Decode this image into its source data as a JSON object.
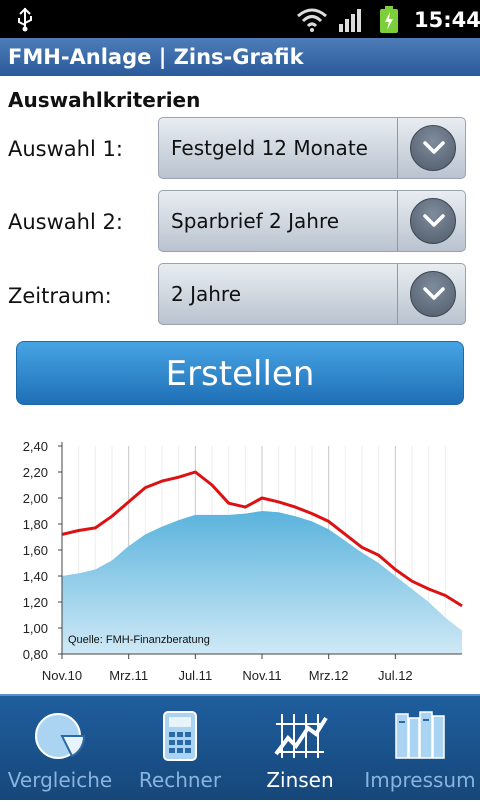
{
  "status_bar": {
    "time": "15:44"
  },
  "app": {
    "title": "FMH-Anlage | Zins-Grafik"
  },
  "form": {
    "section_title": "Auswahlkriterien",
    "rows": [
      {
        "label": "Auswahl 1:",
        "value": "Festgeld 12 Monate"
      },
      {
        "label": "Auswahl 2:",
        "value": "Sparbrief 2 Jahre"
      },
      {
        "label": "Zeitraum:",
        "value": "2 Jahre"
      }
    ],
    "button_label": "Erstellen"
  },
  "tabs": [
    {
      "label": "Vergleiche",
      "icon": "pie-chart-icon",
      "active": false
    },
    {
      "label": "Rechner",
      "icon": "calculator-icon",
      "active": false
    },
    {
      "label": "Zinsen",
      "icon": "line-chart-icon",
      "active": true
    },
    {
      "label": "Impressum",
      "icon": "books-icon",
      "active": false
    }
  ],
  "colors": {
    "line": "#dd1111",
    "area": "#5ab3dd",
    "title_bar": "#2a5a9a",
    "button": "#2a86cc"
  },
  "chart_data": {
    "type": "line",
    "annotation": "Quelle: FMH-Finanzberatung",
    "ylim": [
      0.8,
      2.4
    ],
    "y_ticks": [
      "2,40",
      "2,20",
      "2,00",
      "1,80",
      "1,60",
      "1,40",
      "1,20",
      "1,00",
      "0,80"
    ],
    "x_ticks": [
      "Nov.10",
      "Mrz.11",
      "Jul.11",
      "Nov.11",
      "Mrz.12",
      "Jul.12"
    ],
    "xlim": [
      0,
      24
    ],
    "grid": "vertical",
    "series": [
      {
        "style": "area",
        "x": [
          0,
          1,
          2,
          3,
          4,
          5,
          6,
          7,
          8,
          9,
          10,
          11,
          12,
          13,
          14,
          15,
          16,
          17,
          18,
          19,
          20,
          21,
          22,
          23,
          24
        ],
        "values": [
          1.4,
          1.42,
          1.45,
          1.52,
          1.63,
          1.72,
          1.78,
          1.83,
          1.87,
          1.87,
          1.87,
          1.88,
          1.9,
          1.89,
          1.86,
          1.82,
          1.76,
          1.67,
          1.58,
          1.5,
          1.4,
          1.3,
          1.2,
          1.08,
          0.98
        ]
      },
      {
        "style": "line",
        "x": [
          0,
          1,
          2,
          3,
          4,
          5,
          6,
          7,
          8,
          9,
          10,
          11,
          12,
          13,
          14,
          15,
          16,
          17,
          18,
          19,
          20,
          21,
          22,
          23,
          24
        ],
        "values": [
          1.72,
          1.75,
          1.77,
          1.86,
          1.97,
          2.08,
          2.13,
          2.16,
          2.2,
          2.1,
          1.96,
          1.93,
          2.0,
          1.97,
          1.93,
          1.88,
          1.82,
          1.72,
          1.62,
          1.56,
          1.45,
          1.36,
          1.3,
          1.25,
          1.17
        ]
      }
    ]
  }
}
